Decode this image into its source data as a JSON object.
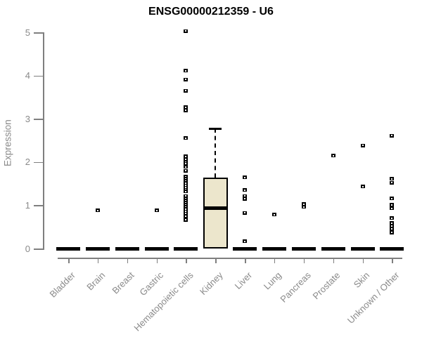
{
  "title": "ENSG00000212359 - U6",
  "chart_data": {
    "type": "boxplot",
    "title": "ENSG00000212359 - U6",
    "ylabel": "Expression",
    "xlabel": "",
    "ylim": [
      0,
      5
    ],
    "yticks": [
      0,
      1,
      2,
      3,
      4,
      5
    ],
    "grid": false,
    "legend": "none",
    "colors": {
      "box_fill": "#ece6cc",
      "box_border": "#000000",
      "median": "#000000",
      "point": "#000000",
      "axis": "#8a8a8a",
      "title": "#000000"
    },
    "categories": [
      "Bladder",
      "Brain",
      "Breast",
      "Gastric",
      "Hematopoietic cells",
      "Kidney",
      "Liver",
      "Lung",
      "Pancreas",
      "Prostate",
      "Skin",
      "Unknown / Other"
    ],
    "series": [
      {
        "category": "Bladder",
        "q1": 0,
        "median": 0,
        "q3": 0,
        "whisker_low": 0,
        "whisker_high": 0,
        "outliers": []
      },
      {
        "category": "Brain",
        "q1": 0,
        "median": 0,
        "q3": 0,
        "whisker_low": 0,
        "whisker_high": 0,
        "outliers": [
          0.88
        ]
      },
      {
        "category": "Breast",
        "q1": 0,
        "median": 0,
        "q3": 0,
        "whisker_low": 0,
        "whisker_high": 0,
        "outliers": []
      },
      {
        "category": "Gastric",
        "q1": 0,
        "median": 0,
        "q3": 0,
        "whisker_low": 0,
        "whisker_high": 0,
        "outliers": [
          0.88
        ]
      },
      {
        "category": "Hematopoietic cells",
        "q1": 0,
        "median": 0,
        "q3": 0,
        "whisker_low": 0,
        "whisker_high": 0,
        "outliers": [
          5.03,
          4.11,
          3.91,
          3.65,
          3.27,
          3.19,
          2.55,
          2.13,
          2.06,
          1.99,
          1.96,
          1.89,
          1.8,
          1.66,
          1.61,
          1.56,
          1.51,
          1.46,
          1.41,
          1.36,
          1.32,
          1.21,
          1.16,
          1.11,
          1.06,
          1.01,
          0.96,
          0.91,
          0.86,
          0.81,
          0.74,
          0.66
        ]
      },
      {
        "category": "Kidney",
        "q1": 0,
        "median": 0.93,
        "q3": 1.64,
        "whisker_low": 0,
        "whisker_high": 2.77,
        "outliers": []
      },
      {
        "category": "Liver",
        "q1": 0,
        "median": 0,
        "q3": 0,
        "whisker_low": 0,
        "whisker_high": 0,
        "outliers": [
          1.64,
          1.35,
          1.21,
          1.15,
          0.82,
          0.17
        ]
      },
      {
        "category": "Lung",
        "q1": 0,
        "median": 0,
        "q3": 0,
        "whisker_low": 0,
        "whisker_high": 0,
        "outliers": [
          0.78
        ]
      },
      {
        "category": "Pancreas",
        "q1": 0,
        "median": 0,
        "q3": 0,
        "whisker_low": 0,
        "whisker_high": 0,
        "outliers": [
          1.03,
          0.96
        ]
      },
      {
        "category": "Prostate",
        "q1": 0,
        "median": 0,
        "q3": 0,
        "whisker_low": 0,
        "whisker_high": 0,
        "outliers": [
          2.15
        ]
      },
      {
        "category": "Skin",
        "q1": 0,
        "median": 0,
        "q3": 0,
        "whisker_low": 0,
        "whisker_high": 0,
        "outliers": [
          2.38,
          1.43
        ]
      },
      {
        "category": "Unknown / Other",
        "q1": 0,
        "median": 0,
        "q3": 0,
        "whisker_low": 0,
        "whisker_high": 0,
        "outliers": [
          2.61,
          1.61,
          1.52,
          1.16,
          1.01,
          0.93,
          0.7,
          0.59,
          0.52,
          0.45,
          0.37
        ]
      }
    ]
  }
}
